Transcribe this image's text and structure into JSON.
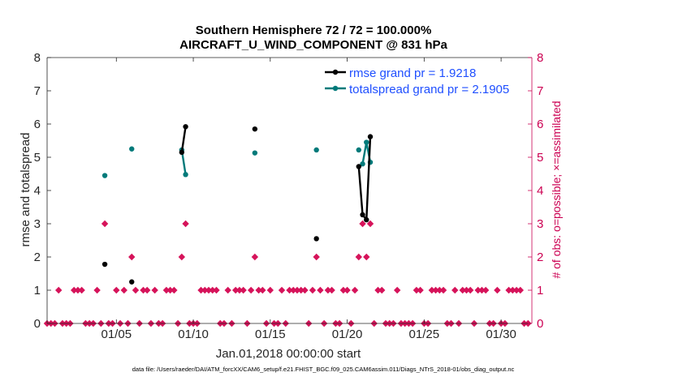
{
  "colors": {
    "rmse": "#000000",
    "spread": "#007a7a",
    "obs": "#d6135a",
    "legend_rmse_text": "#1f4fff",
    "legend_spread_text": "#1f4fff",
    "right_axis": "#cc0052"
  },
  "chart_data": {
    "type": "line",
    "title_line1": "Southern Hemisphere 72 / 72 = 100.000%",
    "title_line2": "AIRCRAFT_U_WIND_COMPONENT @ 831 hPa",
    "xlabel": "Jan.01,2018 00:00:00 start",
    "ylabel_left": "rmse and totalspread",
    "ylabel_right": "# of obs: o=possible; ×=assimilated",
    "footer": "data file: /Users/raeder/DAI/ATM_forcXX/CAM6_setup/f.e21.FHIST_BGC.f09_025.CAM6assim.011/Diags_NTrS_2018-01/obs_diag_output.nc",
    "xlim": [
      0.5,
      32.0
    ],
    "ylim_left": [
      0,
      8
    ],
    "ylim_right": [
      0,
      8
    ],
    "x_ticks": [
      {
        "value": 5,
        "label": "01/05"
      },
      {
        "value": 10,
        "label": "01/10"
      },
      {
        "value": 15,
        "label": "01/15"
      },
      {
        "value": 20,
        "label": "01/20"
      },
      {
        "value": 25,
        "label": "01/25"
      },
      {
        "value": 30,
        "label": "01/30"
      }
    ],
    "y_ticks_left": [
      "0",
      "1",
      "2",
      "3",
      "4",
      "5",
      "6",
      "7",
      "8"
    ],
    "y_ticks_right": [
      "0",
      "1",
      "2",
      "3",
      "4",
      "5",
      "6",
      "7",
      "8"
    ],
    "legend": [
      {
        "name": "rmse",
        "label": "rmse grand pr = 1.9218"
      },
      {
        "name": "totalspread",
        "label": "totalspread grand pr = 2.1905"
      }
    ],
    "series": [
      {
        "name": "rmse",
        "segments": [
          [
            [
              4.25,
              1.78
            ]
          ],
          [
            [
              6.0,
              1.25
            ]
          ],
          [
            [
              9.25,
              5.15
            ],
            [
              9.5,
              5.92
            ]
          ],
          [
            [
              14.0,
              5.85
            ]
          ],
          [
            [
              18.0,
              2.55
            ]
          ],
          [
            [
              20.75,
              4.72
            ],
            [
              21.0,
              3.27
            ],
            [
              21.25,
              3.12
            ],
            [
              21.5,
              5.62
            ]
          ]
        ]
      },
      {
        "name": "totalspread",
        "segments": [
          [
            [
              4.25,
              4.45
            ]
          ],
          [
            [
              6.0,
              5.25
            ]
          ],
          [
            [
              9.25,
              5.22
            ],
            [
              9.5,
              4.48
            ]
          ],
          [
            [
              14.0,
              5.13
            ]
          ],
          [
            [
              18.0,
              5.22
            ]
          ],
          [
            [
              20.75,
              5.22
            ]
          ],
          [
            [
              21.0,
              4.8
            ],
            [
              21.25,
              5.45
            ],
            [
              21.5,
              4.85
            ]
          ]
        ]
      },
      {
        "name": "obs_possible_and_assimilated",
        "values": [
          [
            0.5,
            0
          ],
          [
            0.75,
            0
          ],
          [
            1.0,
            0
          ],
          [
            1.25,
            1
          ],
          [
            1.5,
            0
          ],
          [
            1.75,
            0
          ],
          [
            2.0,
            0
          ],
          [
            2.25,
            1
          ],
          [
            2.5,
            1
          ],
          [
            2.75,
            1
          ],
          [
            3.0,
            0
          ],
          [
            3.25,
            0
          ],
          [
            3.5,
            0
          ],
          [
            3.75,
            1
          ],
          [
            4.0,
            0
          ],
          [
            4.25,
            3
          ],
          [
            4.5,
            0
          ],
          [
            4.75,
            0
          ],
          [
            5.0,
            1
          ],
          [
            5.25,
            0
          ],
          [
            5.5,
            1
          ],
          [
            5.75,
            0
          ],
          [
            6.0,
            2
          ],
          [
            6.25,
            1
          ],
          [
            6.5,
            0
          ],
          [
            6.75,
            1
          ],
          [
            7.0,
            1
          ],
          [
            7.25,
            0
          ],
          [
            7.5,
            1
          ],
          [
            7.75,
            0
          ],
          [
            8.0,
            0
          ],
          [
            8.25,
            1
          ],
          [
            8.5,
            1
          ],
          [
            8.75,
            1
          ],
          [
            9.0,
            0
          ],
          [
            9.25,
            2
          ],
          [
            9.5,
            3
          ],
          [
            9.75,
            0
          ],
          [
            10.0,
            0
          ],
          [
            10.25,
            0
          ],
          [
            10.5,
            1
          ],
          [
            10.75,
            1
          ],
          [
            11.0,
            1
          ],
          [
            11.25,
            1
          ],
          [
            11.5,
            1
          ],
          [
            11.75,
            0
          ],
          [
            12.0,
            0
          ],
          [
            12.25,
            1
          ],
          [
            12.5,
            0
          ],
          [
            12.75,
            1
          ],
          [
            13.0,
            1
          ],
          [
            13.25,
            1
          ],
          [
            13.5,
            0
          ],
          [
            13.75,
            1
          ],
          [
            14.0,
            2
          ],
          [
            14.25,
            1
          ],
          [
            14.5,
            1
          ],
          [
            14.75,
            0
          ],
          [
            15.0,
            1
          ],
          [
            15.25,
            0
          ],
          [
            15.5,
            0
          ],
          [
            15.75,
            1
          ],
          [
            16.0,
            0
          ],
          [
            16.25,
            1
          ],
          [
            16.5,
            1
          ],
          [
            16.75,
            1
          ],
          [
            17.0,
            1
          ],
          [
            17.25,
            1
          ],
          [
            17.5,
            0
          ],
          [
            17.75,
            1
          ],
          [
            18.0,
            2
          ],
          [
            18.25,
            1
          ],
          [
            18.5,
            0
          ],
          [
            18.75,
            1
          ],
          [
            19.0,
            1
          ],
          [
            19.25,
            0
          ],
          [
            19.5,
            0
          ],
          [
            19.75,
            1
          ],
          [
            20.0,
            1
          ],
          [
            20.25,
            0
          ],
          [
            20.5,
            1
          ],
          [
            20.75,
            2
          ],
          [
            21.0,
            3
          ],
          [
            21.25,
            2
          ],
          [
            21.5,
            3
          ],
          [
            21.75,
            0
          ],
          [
            22.0,
            1
          ],
          [
            22.25,
            1
          ],
          [
            22.5,
            0
          ],
          [
            22.75,
            0
          ],
          [
            23.0,
            0
          ],
          [
            23.25,
            1
          ],
          [
            23.5,
            0
          ],
          [
            23.75,
            0
          ],
          [
            24.0,
            0
          ],
          [
            24.25,
            0
          ],
          [
            24.5,
            1
          ],
          [
            24.75,
            1
          ],
          [
            25.0,
            0
          ],
          [
            25.25,
            0
          ],
          [
            25.5,
            1
          ],
          [
            25.75,
            1
          ],
          [
            26.0,
            1
          ],
          [
            26.25,
            1
          ],
          [
            26.5,
            0
          ],
          [
            26.75,
            0
          ],
          [
            27.0,
            1
          ],
          [
            27.25,
            0
          ],
          [
            27.5,
            1
          ],
          [
            27.75,
            1
          ],
          [
            28.0,
            1
          ],
          [
            28.25,
            0
          ],
          [
            28.5,
            1
          ],
          [
            28.75,
            1
          ],
          [
            29.0,
            1
          ],
          [
            29.25,
            0
          ],
          [
            29.5,
            0
          ],
          [
            29.75,
            1
          ],
          [
            30.0,
            0
          ],
          [
            30.25,
            0
          ],
          [
            30.5,
            1
          ],
          [
            30.75,
            1
          ],
          [
            31.0,
            1
          ],
          [
            31.25,
            1
          ],
          [
            31.5,
            0
          ],
          [
            31.75,
            0
          ]
        ]
      }
    ]
  }
}
